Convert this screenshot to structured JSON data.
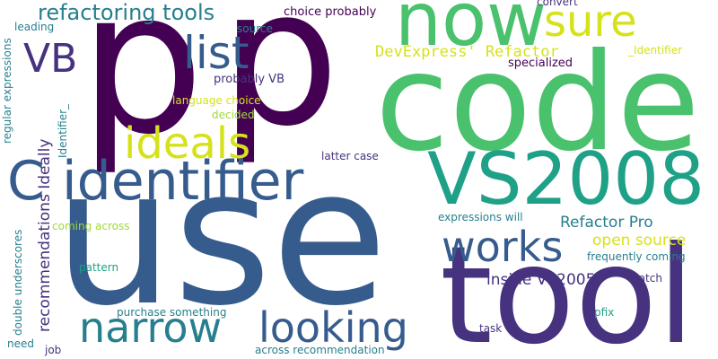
{
  "palette": {
    "dark_purple": "#440154",
    "indigo": "#46327e",
    "blue": "#365c8d",
    "teal": "#277f8e",
    "green_teal": "#1fa187",
    "green": "#4ac16d",
    "yellow_green": "#a0da39",
    "yellow": "#d5e21a",
    "background": "#ffffff"
  },
  "words": [
    "p",
    "p",
    "code",
    "use",
    "tool",
    "now",
    "VS2008",
    "C identifier",
    "sure",
    "ideals",
    "list",
    "VB",
    "works",
    "looking",
    "narrow",
    "refactoring tools",
    "DevExpress' Refactor",
    "inside VS2005",
    "Refactor Pro",
    "open source",
    "recommendations Ideally",
    "choice probably",
    "convert",
    "_Identifier",
    "specialized",
    "probably VB",
    "language choice",
    "decided",
    "source",
    "leading",
    "regular expressions",
    "Identifier_",
    "latter case",
    "expressions will",
    "frequently coming",
    "coming across",
    "pattern",
    "match",
    "purchase something",
    "pfix",
    "task",
    "double underscores",
    "need",
    "job",
    "across recommendation"
  ]
}
